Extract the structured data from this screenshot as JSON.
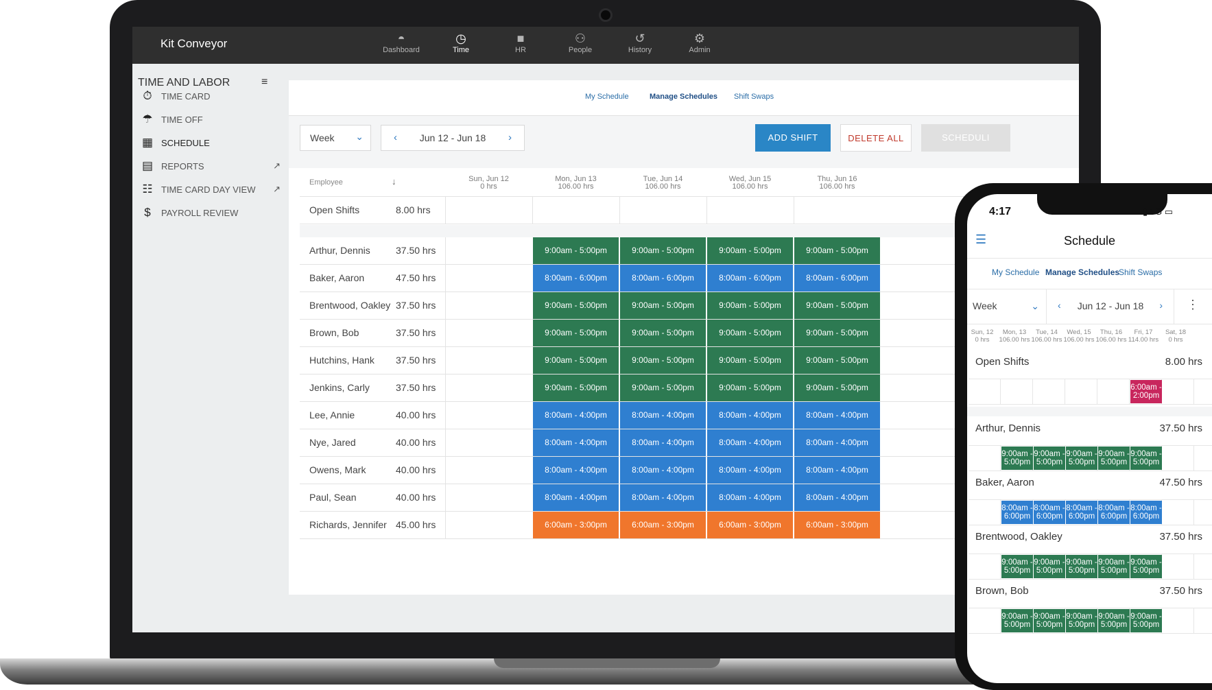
{
  "app": {
    "brand": "Kit Conveyor"
  },
  "topnav": [
    {
      "label": "Dashboard",
      "icon": "dashboard-gauge-icon",
      "active": false
    },
    {
      "label": "Time",
      "icon": "clock-icon",
      "active": true
    },
    {
      "label": "HR",
      "icon": "folder-icon",
      "active": false
    },
    {
      "label": "People",
      "icon": "people-icon",
      "active": false
    },
    {
      "label": "History",
      "icon": "history-icon",
      "active": false
    },
    {
      "label": "Admin",
      "icon": "gear-icon",
      "active": false
    }
  ],
  "sidebar": {
    "title": "TIME AND LABOR",
    "items": [
      {
        "label": "TIME CARD",
        "icon": "timecard-icon"
      },
      {
        "label": "TIME OFF",
        "icon": "beach-icon"
      },
      {
        "label": "SCHEDULE",
        "icon": "calendar-icon",
        "active": true
      },
      {
        "label": "REPORTS",
        "icon": "document-icon",
        "external": true
      },
      {
        "label": "TIME CARD DAY VIEW",
        "icon": "grid-icon",
        "external": true
      },
      {
        "label": "PAYROLL REVIEW",
        "icon": "dollar-icon"
      }
    ]
  },
  "subtabs": [
    "My Schedule",
    "Manage Schedules",
    "Shift Swaps"
  ],
  "controls": {
    "period": "Week",
    "range": "Jun 12 - Jun 18",
    "add_shift": "ADD SHIFT",
    "delete_all": "DELETE ALL",
    "schedule": "SCHEDULI"
  },
  "table": {
    "employee_header": "Employee",
    "days": [
      {
        "label": "Sun, Jun 12",
        "hours": "0 hrs"
      },
      {
        "label": "Mon, Jun 13",
        "hours": "106.00 hrs"
      },
      {
        "label": "Tue, Jun 14",
        "hours": "106.00 hrs"
      },
      {
        "label": "Wed, Jun 15",
        "hours": "106.00 hrs"
      },
      {
        "label": "Thu, Jun 16",
        "hours": "106.00 hrs"
      }
    ],
    "open_shifts": {
      "name": "Open Shifts",
      "hours": "8.00 hrs"
    },
    "rows": [
      {
        "name": "Arthur, Dennis",
        "hours": "37.50 hrs",
        "shift": "9:00am - 5:00pm",
        "color": "#2d7a52"
      },
      {
        "name": "Baker, Aaron",
        "hours": "47.50 hrs",
        "shift": "8:00am - 6:00pm",
        "color": "#2f7fd0"
      },
      {
        "name": "Brentwood, Oakley",
        "hours": "37.50 hrs",
        "shift": "9:00am - 5:00pm",
        "color": "#2d7a52"
      },
      {
        "name": "Brown, Bob",
        "hours": "37.50 hrs",
        "shift": "9:00am - 5:00pm",
        "color": "#2d7a52"
      },
      {
        "name": "Hutchins, Hank",
        "hours": "37.50 hrs",
        "shift": "9:00am - 5:00pm",
        "color": "#2d7a52"
      },
      {
        "name": "Jenkins, Carly",
        "hours": "37.50 hrs",
        "shift": "9:00am - 5:00pm",
        "color": "#2d7a52"
      },
      {
        "name": "Lee, Annie",
        "hours": "40.00 hrs",
        "shift": "8:00am - 4:00pm",
        "color": "#2f7fd0"
      },
      {
        "name": "Nye, Jared",
        "hours": "40.00 hrs",
        "shift": "8:00am - 4:00pm",
        "color": "#2f7fd0"
      },
      {
        "name": "Owens, Mark",
        "hours": "40.00 hrs",
        "shift": "8:00am - 4:00pm",
        "color": "#2f7fd0"
      },
      {
        "name": "Paul, Sean",
        "hours": "40.00 hrs",
        "shift": "8:00am - 4:00pm",
        "color": "#2f7fd0"
      },
      {
        "name": "Richards, Jennifer",
        "hours": "45.00 hrs",
        "shift": "6:00am - 3:00pm",
        "color": "#f0762c"
      }
    ]
  },
  "phone": {
    "time": "4:17",
    "network": "5G",
    "title": "Schedule",
    "tabs": [
      "My Schedule",
      "Manage Schedules",
      "Shift Swaps"
    ],
    "period": "Week",
    "range": "Jun 12 - Jun 18",
    "days": [
      {
        "label": "Sun, 12",
        "hours": "0 hrs"
      },
      {
        "label": "Mon, 13",
        "hours": "106.00 hrs"
      },
      {
        "label": "Tue, 14",
        "hours": "106.00 hrs"
      },
      {
        "label": "Wed, 15",
        "hours": "106.00 hrs"
      },
      {
        "label": "Thu, 16",
        "hours": "106.00 hrs"
      },
      {
        "label": "Fri, 17",
        "hours": "114.00 hrs"
      },
      {
        "label": "Sat, 18",
        "hours": "0 hrs"
      }
    ],
    "open_shifts": {
      "name": "Open Shifts",
      "hours": "8.00 hrs",
      "shift_top": "6:00am -",
      "shift_bottom": "2:00pm",
      "color": "#c8265d"
    },
    "rows": [
      {
        "name": "Arthur, Dennis",
        "hours": "37.50 hrs",
        "top": "9:00am -",
        "bottom": "5:00pm",
        "color": "#2d7a52"
      },
      {
        "name": "Baker, Aaron",
        "hours": "47.50 hrs",
        "top": "8:00am -",
        "bottom": "6:00pm",
        "color": "#2f7fd0"
      },
      {
        "name": "Brentwood, Oakley",
        "hours": "37.50 hrs",
        "top": "9:00am -",
        "bottom": "5:00pm",
        "color": "#2d7a52"
      },
      {
        "name": "Brown, Bob",
        "hours": "37.50 hrs",
        "top": "9:00am -",
        "bottom": "5:00pm",
        "color": "#2d7a52"
      }
    ]
  }
}
